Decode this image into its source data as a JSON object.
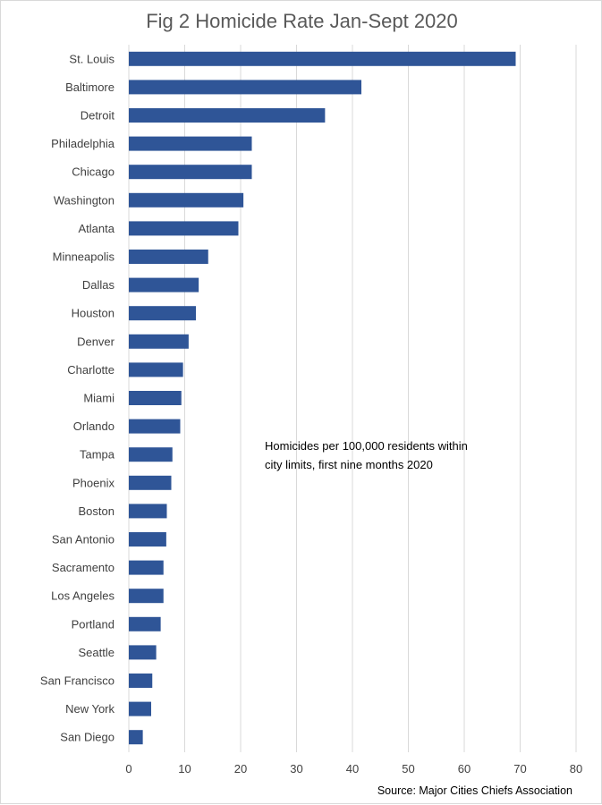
{
  "chart_data": {
    "type": "bar",
    "orientation": "horizontal",
    "title": "Fig 2 Homicide Rate Jan-Sept 2020",
    "annotation": "Homicides per 100,000 residents within city limits, first nine months 2020",
    "source": "Source: Major Cities Chiefs Association",
    "categories": [
      "St. Louis",
      "Baltimore",
      "Detroit",
      "Philadelphia",
      "Chicago",
      "Washington",
      "Atlanta",
      "Minneapolis",
      "Dallas",
      "Houston",
      "Denver",
      "Charlotte",
      "Miami",
      "Orlando",
      "Tampa",
      "Phoenix",
      "Boston",
      "San Antonio",
      "Sacramento",
      "Los Angeles",
      "Portland",
      "Seattle",
      "San Francisco",
      "New York",
      "San Diego"
    ],
    "values": [
      69.2,
      41.6,
      35.1,
      22.0,
      22.0,
      20.5,
      19.6,
      14.2,
      12.5,
      12.0,
      10.7,
      9.7,
      9.4,
      9.2,
      7.8,
      7.6,
      6.8,
      6.7,
      6.2,
      6.2,
      5.7,
      4.9,
      4.2,
      4.0,
      2.5
    ],
    "xlim": [
      0,
      80
    ],
    "xticks": [
      0,
      10,
      20,
      30,
      40,
      50,
      60,
      70,
      80
    ],
    "grid": true,
    "legend": "none",
    "bar_color": "#2f5597",
    "grid_color": "#d9d9d9"
  }
}
